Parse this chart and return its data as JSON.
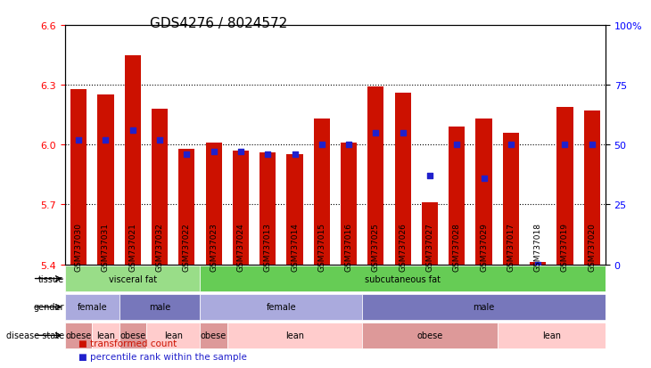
{
  "title": "GDS4276 / 8024572",
  "samples": [
    "GSM737030",
    "GSM737031",
    "GSM737021",
    "GSM737032",
    "GSM737022",
    "GSM737023",
    "GSM737024",
    "GSM737013",
    "GSM737014",
    "GSM737015",
    "GSM737016",
    "GSM737025",
    "GSM737026",
    "GSM737027",
    "GSM737028",
    "GSM737029",
    "GSM737017",
    "GSM737018",
    "GSM737019",
    "GSM737020"
  ],
  "bar_values": [
    6.28,
    6.25,
    6.45,
    6.18,
    5.98,
    6.01,
    5.97,
    5.96,
    5.95,
    6.13,
    6.01,
    6.29,
    6.26,
    5.71,
    6.09,
    6.13,
    6.06,
    5.41,
    6.19,
    6.17
  ],
  "percentile_values": [
    52,
    52,
    56,
    52,
    46,
    47,
    47,
    46,
    46,
    50,
    50,
    55,
    55,
    37,
    50,
    36,
    50,
    0,
    50,
    50
  ],
  "bar_bottom": 5.4,
  "ylim_left": [
    5.4,
    6.6
  ],
  "ylim_right": [
    0,
    100
  ],
  "yticks_left": [
    5.4,
    5.7,
    6.0,
    6.3,
    6.6
  ],
  "yticks_right": [
    0,
    25,
    50,
    75,
    100
  ],
  "grid_values": [
    5.7,
    6.0,
    6.3
  ],
  "bar_color": "#CC1100",
  "percentile_color": "#2020CC",
  "tissue_row": {
    "label": "tissue",
    "segments": [
      {
        "text": "visceral fat",
        "start": 0,
        "end": 5,
        "color": "#99DD88"
      },
      {
        "text": "subcutaneous fat",
        "start": 5,
        "end": 20,
        "color": "#66CC55"
      }
    ]
  },
  "gender_row": {
    "label": "gender",
    "segments": [
      {
        "text": "female",
        "start": 0,
        "end": 2,
        "color": "#AAAADD"
      },
      {
        "text": "male",
        "start": 2,
        "end": 5,
        "color": "#7777BB"
      },
      {
        "text": "female",
        "start": 5,
        "end": 11,
        "color": "#AAAADD"
      },
      {
        "text": "male",
        "start": 11,
        "end": 20,
        "color": "#7777BB"
      }
    ]
  },
  "disease_row": {
    "label": "disease state",
    "segments": [
      {
        "text": "obese",
        "start": 0,
        "end": 1,
        "color": "#DD9999"
      },
      {
        "text": "lean",
        "start": 1,
        "end": 2,
        "color": "#FFCCCC"
      },
      {
        "text": "obese",
        "start": 2,
        "end": 3,
        "color": "#DD9999"
      },
      {
        "text": "lean",
        "start": 3,
        "end": 5,
        "color": "#FFCCCC"
      },
      {
        "text": "obese",
        "start": 5,
        "end": 6,
        "color": "#DD9999"
      },
      {
        "text": "lean",
        "start": 6,
        "end": 11,
        "color": "#FFCCCC"
      },
      {
        "text": "obese",
        "start": 11,
        "end": 16,
        "color": "#DD9999"
      },
      {
        "text": "lean",
        "start": 16,
        "end": 20,
        "color": "#FFCCCC"
      }
    ]
  },
  "legend": [
    {
      "label": "transformed count",
      "color": "#CC1100",
      "marker": "s"
    },
    {
      "label": "percentile rank within the sample",
      "color": "#2020CC",
      "marker": "s"
    }
  ]
}
